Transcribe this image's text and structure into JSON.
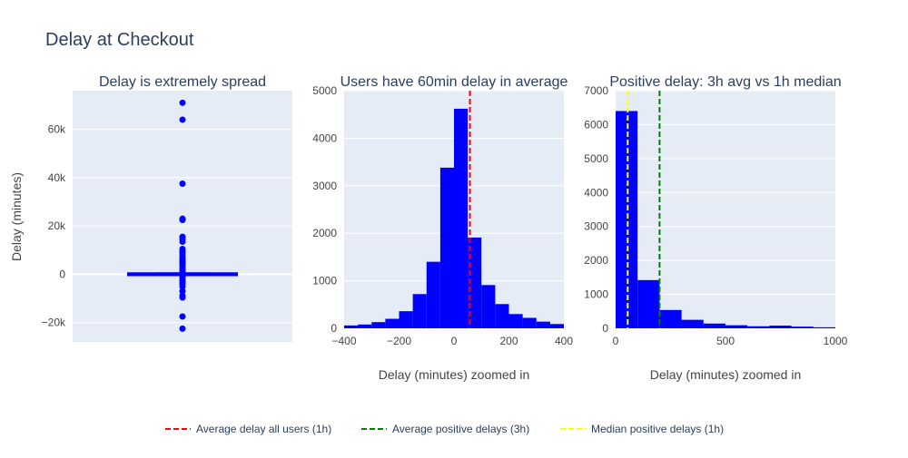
{
  "title": "Delay at Checkout",
  "colors": {
    "bar": "#0000ff",
    "avg_all": "#ff0000",
    "avg_pos": "#008000",
    "median_pos": "#ffff00"
  },
  "legend": {
    "placement": "bottom-center",
    "items": [
      {
        "label": "Average delay all users (1h)",
        "color": "#ff0000"
      },
      {
        "label": "Average positive delays (3h)",
        "color": "#008000"
      },
      {
        "label": "Median positive delays (1h)",
        "color": "#ffff00"
      }
    ]
  },
  "chart_data": [
    {
      "type": "box",
      "title": "Delay is extremely spread",
      "ylabel": "Delay (minutes)",
      "xlabel": "",
      "ylim": [
        -28000,
        76000
      ],
      "ytick_values": [
        -20000,
        0,
        20000,
        40000,
        60000
      ],
      "ytick_labels": [
        "−20k",
        "0",
        "20k",
        "40k",
        "60k"
      ],
      "box": {
        "q1": -30,
        "median": 0,
        "q3": 60,
        "lower_whisker": -290,
        "upper_whisker": 350
      },
      "outliers": [
        71000,
        64000,
        37500,
        23000,
        22500,
        15500,
        14500,
        13500,
        10500,
        9500,
        8500,
        7500,
        6700,
        6000,
        5200,
        4500,
        3800,
        3000,
        2200,
        1500,
        900,
        -900,
        -1600,
        -2400,
        -3200,
        -4000,
        -5200,
        -7000,
        -8800,
        -9600,
        -17500,
        -22500
      ]
    },
    {
      "type": "bar",
      "title": "Users have 60min delay in average",
      "xlabel": "Delay (minutes) zoomed in",
      "ylabel": "",
      "xlim": [
        -400,
        400
      ],
      "ylim": [
        0,
        5000
      ],
      "xtick_values": [
        -400,
        -200,
        0,
        200,
        400
      ],
      "xtick_labels": [
        "−400",
        "−200",
        "0",
        "200",
        "400"
      ],
      "ytick_values": [
        0,
        1000,
        2000,
        3000,
        4000,
        5000
      ],
      "ytick_labels": [
        "0",
        "1000",
        "2000",
        "3000",
        "4000",
        "5000"
      ],
      "bin_width": 50,
      "bin_starts": [
        -400,
        -350,
        -300,
        -250,
        -200,
        -150,
        -100,
        -50,
        0,
        50,
        100,
        150,
        200,
        250,
        300,
        350
      ],
      "values": [
        60,
        80,
        130,
        200,
        360,
        720,
        1400,
        3380,
        4620,
        1910,
        910,
        510,
        300,
        220,
        140,
        90
      ],
      "reference_lines": [
        {
          "x": 58,
          "color": "#ff0000",
          "label": "Average delay all users (1h)"
        }
      ]
    },
    {
      "type": "bar",
      "title": "Positive delay: 3h avg vs 1h median",
      "xlabel": "Delay (minutes) zoomed in",
      "ylabel": "",
      "xlim": [
        0,
        1000
      ],
      "ylim": [
        0,
        7000
      ],
      "xtick_values": [
        0,
        500,
        1000
      ],
      "xtick_labels": [
        "0",
        "500",
        "1000"
      ],
      "ytick_values": [
        0,
        1000,
        2000,
        3000,
        4000,
        5000,
        6000,
        7000
      ],
      "ytick_labels": [
        "0",
        "1000",
        "2000",
        "3000",
        "4000",
        "5000",
        "6000",
        "7000"
      ],
      "bin_width": 100,
      "bin_starts": [
        0,
        100,
        200,
        300,
        400,
        500,
        600,
        700,
        800,
        900
      ],
      "values": [
        6400,
        1420,
        540,
        250,
        140,
        90,
        60,
        80,
        50,
        30
      ],
      "reference_lines": [
        {
          "x": 200,
          "color": "#008000",
          "label": "Average positive delays (3h)"
        },
        {
          "x": 55,
          "color": "#ffff00",
          "label": "Median positive delays (1h)"
        }
      ]
    }
  ]
}
